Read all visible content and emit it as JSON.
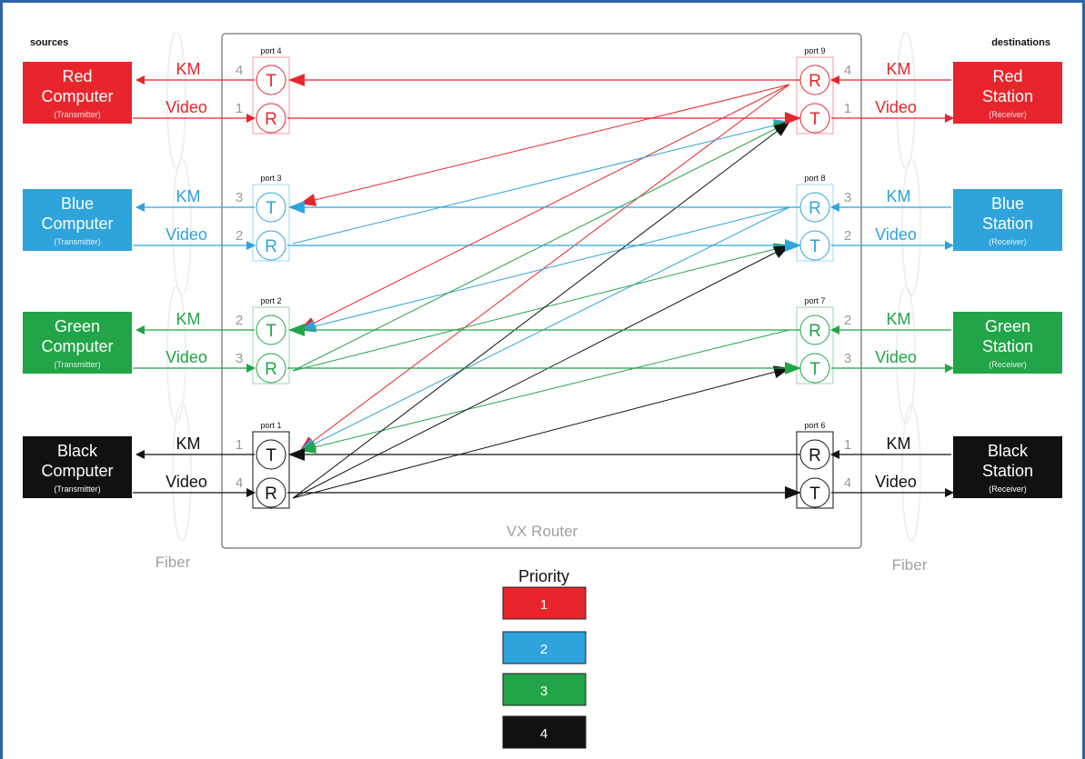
{
  "headers": {
    "sources": "sources",
    "destinations": "destinations"
  },
  "router_label": "VX Router",
  "fiber_left": "Fiber",
  "fiber_right": "Fiber",
  "priority": {
    "title": "Priority",
    "levels": [
      "1",
      "2",
      "3",
      "4"
    ]
  },
  "colors": {
    "red": "#e8252c",
    "blue": "#2ea3dc",
    "green": "#22a448",
    "black": "#111111",
    "frame": "#2c64a8"
  },
  "signals": {
    "km": "KM",
    "video": "Video"
  },
  "sources": [
    {
      "color": "red",
      "name1": "Red",
      "name2": "Computer",
      "role": "(Transmitter)",
      "port": "port 4",
      "km_priority": "4",
      "video_priority": "1",
      "top": "T",
      "bottom": "R"
    },
    {
      "color": "blue",
      "name1": "Blue",
      "name2": "Computer",
      "role": "(Transmitter)",
      "port": "port 3",
      "km_priority": "3",
      "video_priority": "2",
      "top": "T",
      "bottom": "R"
    },
    {
      "color": "green",
      "name1": "Green",
      "name2": "Computer",
      "role": "(Transmitter)",
      "port": "port 2",
      "km_priority": "2",
      "video_priority": "3",
      "top": "T",
      "bottom": "R"
    },
    {
      "color": "black",
      "name1": "Black",
      "name2": "Computer",
      "role": "(Transmitter)",
      "port": "port 1",
      "km_priority": "1",
      "video_priority": "4",
      "top": "T",
      "bottom": "R"
    }
  ],
  "destinations": [
    {
      "color": "red",
      "name1": "Red",
      "name2": "Station",
      "role": "(Receiver)",
      "port": "port 9",
      "km_priority": "4",
      "video_priority": "1",
      "top": "R",
      "bottom": "T"
    },
    {
      "color": "blue",
      "name1": "Blue",
      "name2": "Station",
      "role": "(Receiver)",
      "port": "port 8",
      "km_priority": "3",
      "video_priority": "2",
      "top": "R",
      "bottom": "T"
    },
    {
      "color": "green",
      "name1": "Green",
      "name2": "Station",
      "role": "(Receiver)",
      "port": "port 7",
      "km_priority": "2",
      "video_priority": "3",
      "top": "R",
      "bottom": "T"
    },
    {
      "color": "black",
      "name1": "Black",
      "name2": "Station",
      "role": "(Receiver)",
      "port": "port 6",
      "km_priority": "1",
      "video_priority": "4",
      "top": "R",
      "bottom": "T"
    }
  ]
}
